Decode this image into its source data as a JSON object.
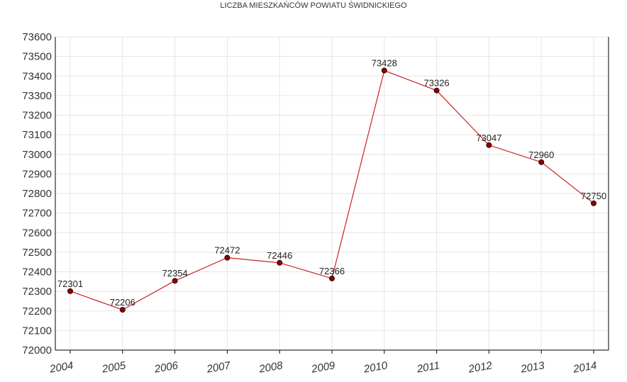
{
  "chart_data": {
    "type": "line",
    "title": "LICZBA MIESZKAŃCÓW POWIATU ŚWIDNICKIEGO",
    "xlabel": "",
    "ylabel": "",
    "categories": [
      "2004",
      "2005",
      "2006",
      "2007",
      "2008",
      "2009",
      "2010",
      "2011",
      "2012",
      "2013",
      "2014"
    ],
    "series": [
      {
        "values": [
          72301,
          72206,
          72354,
          72472,
          72446,
          72366,
          73428,
          73326,
          73047,
          72960,
          72750
        ]
      }
    ],
    "ylim": [
      72000,
      73600
    ],
    "yticks": [
      "72000",
      "72100",
      "72200",
      "72300",
      "72400",
      "72500",
      "72600",
      "72700",
      "72800",
      "72900",
      "73000",
      "73100",
      "73200",
      "73300",
      "73400",
      "73500",
      "73600"
    ],
    "data_labels": [
      "72301",
      "72206",
      "72354",
      "72472",
      "72446",
      "72366",
      "73428",
      "73326",
      "73047",
      "72960",
      "72750"
    ],
    "grid": true,
    "legend": "none",
    "colors": {
      "line": "#cc2222",
      "marker_fill": "#8b0000",
      "marker_stroke": "#330000",
      "grid": "#e6e6e6",
      "axis": "#000000"
    }
  }
}
